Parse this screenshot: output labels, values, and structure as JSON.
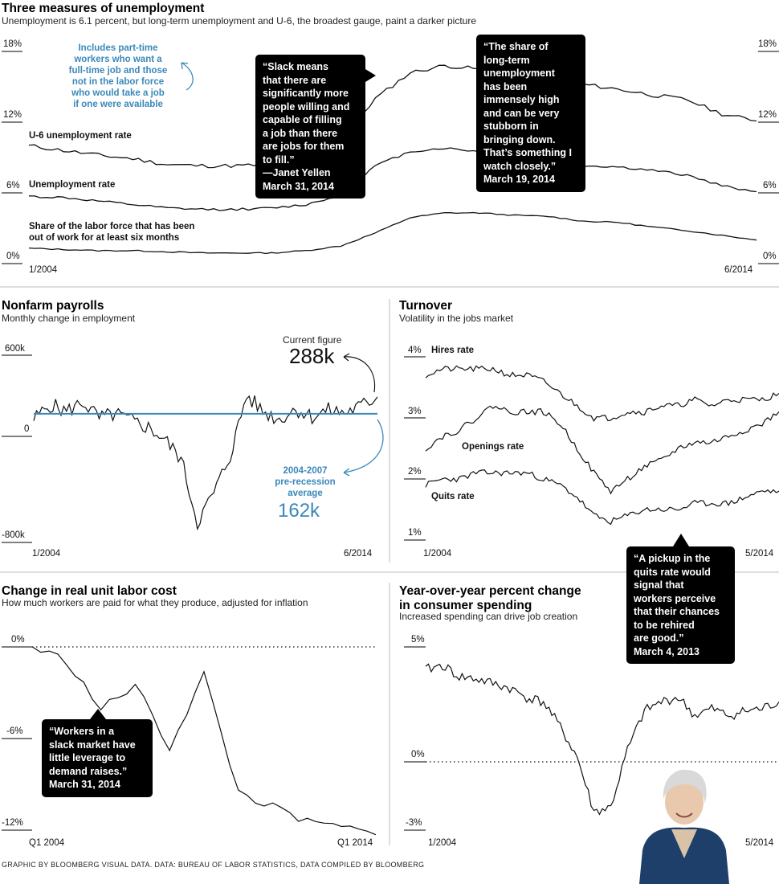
{
  "header": {
    "title": "Three measures of unemployment",
    "subtitle": "Unemployment is 6.1 percent, but long-term unemployment and U-6, the broadest gauge, paint a darker picture"
  },
  "colors": {
    "line": "#111111",
    "accent": "#3a88bb",
    "bubble": "#000000"
  },
  "top": {
    "labels": {
      "u6": "U-6 unemployment rate",
      "unemp": "Unemployment rate",
      "ltu": "Share of the labor force that has been\nout of work for at least six months"
    },
    "note": "Includes part-time\nworkers who want a\nfull-time job and those\nnot in the labor force\nwho would take a job\nif one were available",
    "quote1": "“Slack means\nthat there are\nsignificantly more\npeople willing and\ncapable of filling\na job than there\nare jobs for them\nto fill.”\n—Janet Yellen\nMarch 31, 2014",
    "quote2": "“The share of\nlong-term\nunemployment\nhas been\nimmensely high\nand can be very\nstubborn in\nbringing down.\nThat’s something I\nwatch closely.”\nMarch 19, 2014"
  },
  "payrolls": {
    "title": "Nonfarm payrolls",
    "subtitle": "Monthly change in employment",
    "current_label": "Current figure",
    "current_value": "288k",
    "avg_label": "2004-2007\npre-recession\naverage",
    "avg_value": "162k"
  },
  "turnover": {
    "title": "Turnover",
    "subtitle": "Volatility in the jobs market",
    "labels": {
      "hires": "Hires rate",
      "openings": "Openings rate",
      "quits": "Quits rate"
    },
    "quote": "“A pickup in the\nquits rate would\nsignal that\nworkers perceive\nthat their chances\nto be rehired\nare good.”\nMarch 4, 2013"
  },
  "labor": {
    "title": "Change in real unit labor cost",
    "subtitle": "How much workers are paid for what they produce, adjusted for inflation",
    "quote": "“Workers in a\nslack market have\nlittle leverage to\ndemand raises.”\nMarch 31, 2014"
  },
  "spending": {
    "title": "Year-over-year percent change\nin consumer spending",
    "subtitle": "Increased spending can drive job creation"
  },
  "footer": "GRAPHIC BY BLOOMBERG VISUAL DATA. DATA: BUREAU OF LABOR STATISTICS, DATA COMPILED BY BLOOMBERG",
  "chart_data": [
    {
      "type": "line",
      "id": "unemployment",
      "title": "Three measures of unemployment",
      "x_start": "1/2004",
      "x_end": "6/2014",
      "x_tick_labels": [
        "1/2004",
        "6/2014"
      ],
      "ylim": [
        0,
        18
      ],
      "y_ticks": [
        "0%",
        "6%",
        "12%",
        "18%"
      ],
      "x": [
        "2004",
        "2004.5",
        "2005",
        "2005.5",
        "2006",
        "2006.5",
        "2007",
        "2007.5",
        "2008",
        "2008.5",
        "2009",
        "2009.5",
        "2010",
        "2010.5",
        "2011",
        "2011.5",
        "2012",
        "2012.5",
        "2013",
        "2013.5",
        "2014",
        "2014.5"
      ],
      "series": [
        {
          "name": "U-6 unemployment rate",
          "values": [
            10.0,
            9.6,
            9.2,
            8.9,
            8.4,
            8.3,
            8.3,
            8.4,
            9.2,
            10.5,
            14.0,
            16.2,
            16.8,
            16.5,
            16.1,
            16.1,
            15.2,
            14.8,
            14.3,
            13.9,
            12.7,
            12.1
          ]
        },
        {
          "name": "Unemployment rate",
          "values": [
            5.7,
            5.6,
            5.3,
            5.0,
            4.7,
            4.6,
            4.6,
            4.7,
            5.0,
            5.8,
            8.3,
            9.5,
            9.8,
            9.5,
            9.1,
            9.1,
            8.3,
            8.2,
            7.9,
            7.5,
            6.6,
            6.1
          ]
        },
        {
          "name": "Share of the labor force that has been out of work for at least six months",
          "values": [
            1.3,
            1.2,
            1.1,
            1.1,
            1.0,
            0.9,
            0.9,
            0.9,
            1.1,
            1.5,
            2.6,
            3.9,
            4.3,
            4.3,
            4.1,
            4.0,
            3.6,
            3.5,
            3.1,
            2.8,
            2.4,
            2.0
          ]
        }
      ]
    },
    {
      "type": "line",
      "id": "payrolls",
      "title": "Nonfarm payrolls",
      "subtitle": "Monthly change in employment",
      "x_tick_labels": [
        "1/2004",
        "6/2014"
      ],
      "ylim": [
        -800,
        600
      ],
      "y_ticks": [
        "600k",
        "0",
        "-800k"
      ],
      "x": [
        "2004",
        "2004.5",
        "2005",
        "2005.5",
        "2006",
        "2006.5",
        "2007",
        "2007.5",
        "2008",
        "2008.5",
        "2009",
        "2009.5",
        "2010",
        "2010.5",
        "2011",
        "2011.5",
        "2012",
        "2012.5",
        "2013",
        "2013.5",
        "2014",
        "2014.5"
      ],
      "series": [
        {
          "name": "Monthly change",
          "values": [
            120,
            230,
            180,
            250,
            130,
            160,
            110,
            60,
            -30,
            -170,
            -650,
            -430,
            -150,
            300,
            180,
            120,
            200,
            140,
            190,
            170,
            220,
            288
          ]
        }
      ],
      "reference_line": {
        "label": "2004-2007 pre-recession average",
        "value": 162
      },
      "current_value": 288
    },
    {
      "type": "line",
      "id": "turnover",
      "title": "Turnover",
      "subtitle": "Volatility in the jobs market",
      "x_tick_labels": [
        "1/2004",
        "5/2014"
      ],
      "ylim": [
        1,
        4
      ],
      "y_ticks": [
        "1%",
        "2%",
        "3%",
        "4%"
      ],
      "x": [
        "2004",
        "2004.5",
        "2005",
        "2005.5",
        "2006",
        "2006.5",
        "2007",
        "2007.5",
        "2008",
        "2008.5",
        "2009",
        "2009.5",
        "2010",
        "2010.5",
        "2011",
        "2011.5",
        "2012",
        "2012.5",
        "2013",
        "2013.5",
        "2014",
        "2014.4"
      ],
      "series": [
        {
          "name": "Hires rate",
          "values": [
            3.7,
            3.8,
            3.8,
            3.8,
            3.8,
            3.7,
            3.7,
            3.6,
            3.4,
            3.2,
            3.0,
            3.0,
            3.1,
            3.1,
            3.2,
            3.2,
            3.3,
            3.2,
            3.3,
            3.3,
            3.3,
            3.4
          ]
        },
        {
          "name": "Openings rate",
          "values": [
            2.5,
            2.7,
            2.8,
            3.0,
            3.2,
            3.1,
            3.1,
            3.1,
            2.9,
            2.5,
            2.1,
            1.8,
            2.0,
            2.2,
            2.3,
            2.5,
            2.6,
            2.6,
            2.7,
            2.8,
            2.9,
            3.1
          ]
        },
        {
          "name": "Quits rate",
          "values": [
            1.9,
            2.0,
            2.0,
            2.1,
            2.1,
            2.1,
            2.1,
            2.0,
            1.9,
            1.7,
            1.4,
            1.3,
            1.4,
            1.5,
            1.5,
            1.5,
            1.6,
            1.6,
            1.6,
            1.7,
            1.8,
            1.8
          ]
        }
      ]
    },
    {
      "type": "line",
      "id": "labor-cost",
      "title": "Change in real unit labor cost",
      "x_tick_labels": [
        "Q1 2004",
        "Q1 2014"
      ],
      "ylim": [
        -12,
        0
      ],
      "y_ticks": [
        "0%",
        "-6%",
        "-12%"
      ],
      "x": [
        "Q1 2004",
        "Q1 2005",
        "Q1 2006",
        "Q1 2007",
        "Q1 2008",
        "Q1 2009",
        "Q1 2010",
        "Q1 2011",
        "Q1 2012",
        "Q1 2013",
        "Q1 2014"
      ],
      "series": [
        {
          "name": "Real unit labor cost",
          "values": [
            0.0,
            -0.9,
            -4.1,
            -2.5,
            -6.6,
            -1.8,
            -9.5,
            -10.5,
            -11.5,
            -11.8,
            -12.3
          ]
        }
      ]
    },
    {
      "type": "line",
      "id": "consumer-spending",
      "title": "Year-over-year percent change in consumer spending",
      "subtitle": "Increased spending can drive job creation",
      "x_tick_labels": [
        "1/2004",
        "5/2014"
      ],
      "ylim": [
        -3,
        5
      ],
      "y_ticks": [
        "5%",
        "0%",
        "-3%"
      ],
      "x": [
        "2004",
        "2004.5",
        "2005",
        "2005.5",
        "2006",
        "2006.5",
        "2007",
        "2007.5",
        "2008",
        "2008.5",
        "2009",
        "2009.5",
        "2010",
        "2010.5",
        "2011",
        "2011.5",
        "2012",
        "2012.5",
        "2013",
        "2013.5",
        "2014",
        "2014.4"
      ],
      "series": [
        {
          "name": "Consumer spending",
          "values": [
            4.0,
            4.2,
            3.7,
            3.6,
            3.4,
            3.2,
            2.8,
            2.6,
            1.5,
            0.2,
            -2.2,
            -2.0,
            0.5,
            2.2,
            2.6,
            2.8,
            2.0,
            2.3,
            2.0,
            2.2,
            2.3,
            2.6
          ]
        }
      ]
    }
  ]
}
